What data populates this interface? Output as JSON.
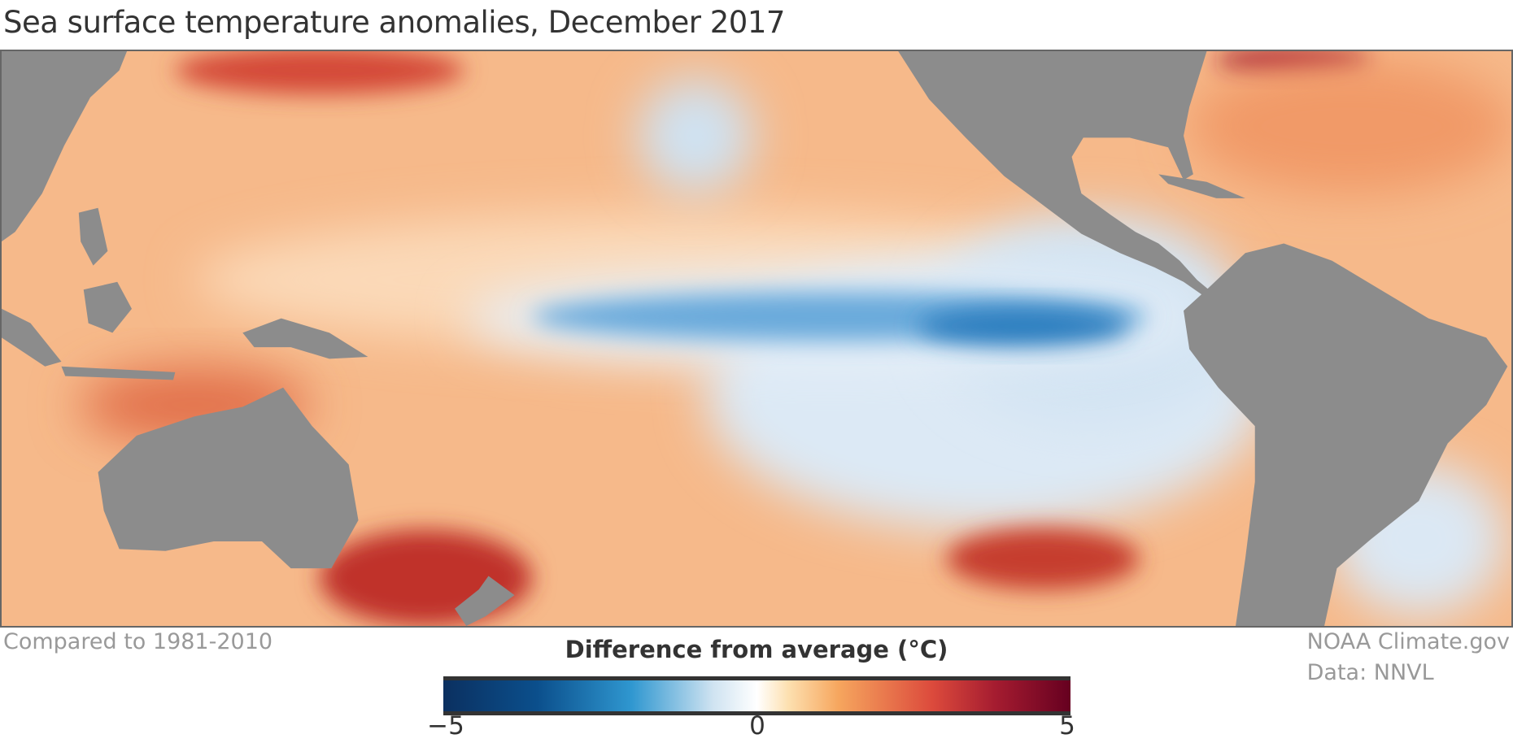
{
  "title": "Sea surface temperature anomalies, December 2017",
  "footnote_left": "Compared to 1981-2010",
  "credit": [
    "NOAA Climate.gov",
    "Data: NNVL"
  ],
  "colorbar": {
    "label": "Difference from average (°C)",
    "ticks": [
      "−5",
      "0",
      "5"
    ],
    "min": -5,
    "max": 5,
    "colors": [
      "#0b3060",
      "#2f97d0",
      "#ffffff",
      "#f6a65e",
      "#dc4a3c",
      "#660020"
    ]
  },
  "map_colors": {
    "land": "#8c8c8c",
    "ocean_warm": "#f6b98a",
    "cool": "#5a9fd4",
    "hot": "#b8222a"
  }
}
